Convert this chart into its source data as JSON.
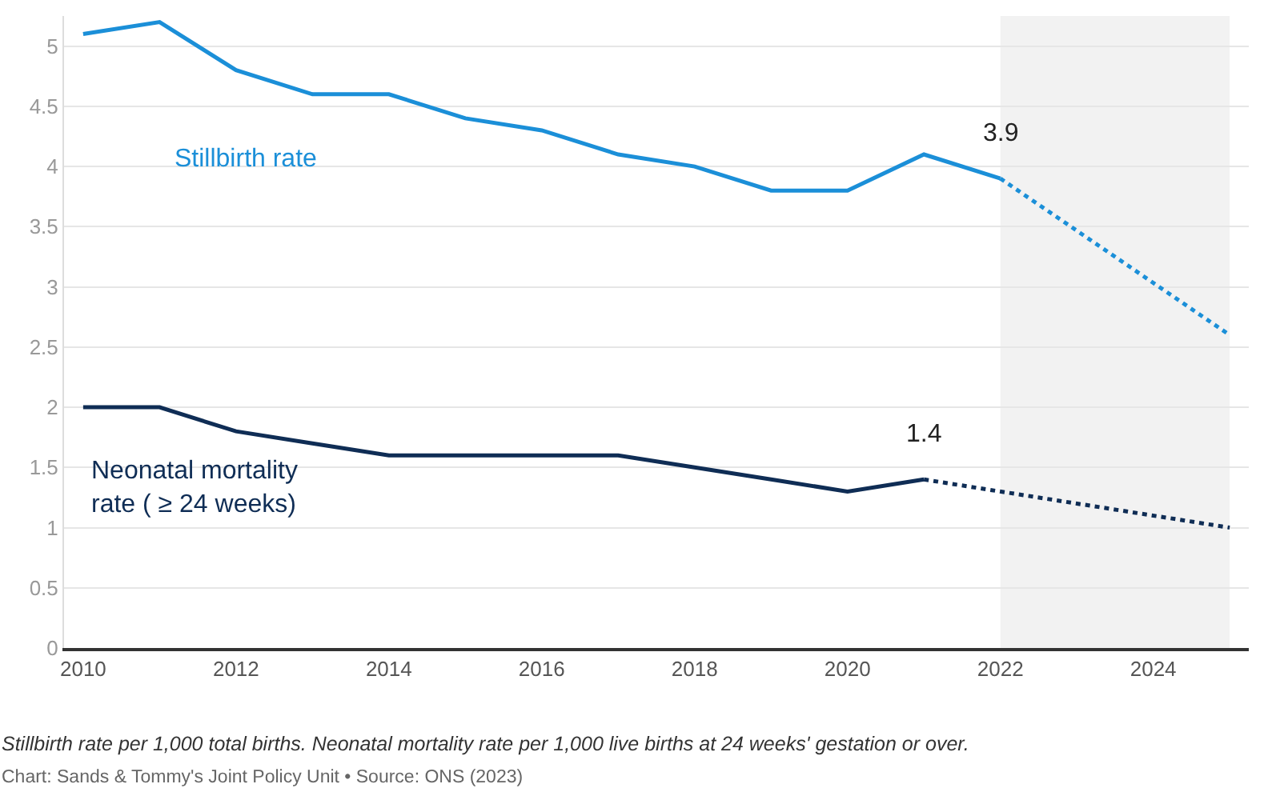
{
  "chart_data": {
    "type": "line",
    "series": [
      {
        "name": "Stillbirth rate",
        "color": "#1b8fd8",
        "line_style": "solid",
        "x": [
          2010,
          2011,
          2012,
          2013,
          2014,
          2015,
          2016,
          2017,
          2018,
          2019,
          2020,
          2021,
          2022
        ],
        "values": [
          5.1,
          5.2,
          4.8,
          4.6,
          4.6,
          4.4,
          4.3,
          4.1,
          4.0,
          3.8,
          3.8,
          4.1,
          3.9
        ]
      },
      {
        "color": "#1b8fd8",
        "line_style": "dotted",
        "x": [
          2022,
          2025
        ],
        "values": [
          3.9,
          2.6
        ]
      },
      {
        "name": "Neonatal mortality rate ( ≥ 24 weeks)",
        "color": "#0f2d55",
        "line_style": "solid",
        "x": [
          2010,
          2011,
          2012,
          2013,
          2014,
          2015,
          2016,
          2017,
          2018,
          2019,
          2020,
          2021
        ],
        "values": [
          2.0,
          2.0,
          1.8,
          1.7,
          1.6,
          1.6,
          1.6,
          1.6,
          1.5,
          1.4,
          1.3,
          1.4
        ]
      },
      {
        "color": "#0f2d55",
        "line_style": "dotted",
        "x": [
          2021,
          2025
        ],
        "values": [
          1.4,
          1.0
        ]
      }
    ],
    "xlim": [
      2009.75,
      2025.25
    ],
    "xticks": [
      2010,
      2012,
      2014,
      2016,
      2018,
      2020,
      2022,
      2024
    ],
    "ylim": [
      0,
      5.25
    ],
    "yticks": [
      0,
      0.5,
      1,
      1.5,
      2,
      2.5,
      3,
      3.5,
      4,
      4.5,
      5
    ],
    "bands": [
      {
        "axis": "x",
        "from": 2022,
        "to": 2025,
        "color": "#f2f2f2"
      }
    ],
    "grid": "y",
    "legend": false,
    "marker": "none",
    "annotations": [
      {
        "text": "3.9",
        "x": 2022,
        "y": 3.9
      },
      {
        "text": "1.4",
        "x": 2021,
        "y": 1.4
      },
      "Stillbirth rate per 1,000 total births. Neonatal mortality rate per 1,000 live births at 24 weeks' gestation or over.",
      "Chart: Sands & Tommy's Joint Policy Unit • Source: ONS (2023)"
    ]
  }
}
